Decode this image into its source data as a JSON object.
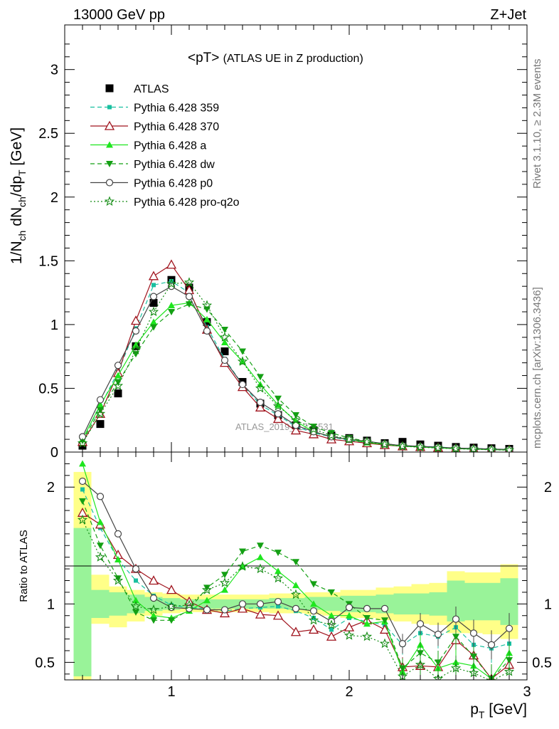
{
  "header": {
    "left": "13000 GeV pp",
    "right": "Z+Jet"
  },
  "title_main": "<pT>",
  "title_sub": "(ATLAS UE in Z production)",
  "side_labels": {
    "rivet": "Rivet 3.1.10, ≥ 2.3M events",
    "url": "mcplots.cern.ch [arXiv:1306.3436]"
  },
  "watermark": "ATLAS_2019_I1736531",
  "chart_data": [
    {
      "type": "scatter",
      "panel": "main",
      "ylabel": "1/N_ch dN_ch/dp_T [GeV]",
      "xlim": [
        0.4,
        3.0
      ],
      "ylim": [
        0,
        3.35
      ],
      "y_ticks": [
        0,
        0.5,
        1,
        1.5,
        2,
        2.5,
        3
      ],
      "y_tick_labels": [
        "0",
        "0.5",
        "1",
        "1.5",
        "2",
        "2.5",
        "3"
      ],
      "legend_position": "top-left",
      "x": [
        0.5,
        0.6,
        0.7,
        0.8,
        0.9,
        1.0,
        1.1,
        1.2,
        1.3,
        1.4,
        1.5,
        1.6,
        1.7,
        1.8,
        1.9,
        2.0,
        2.1,
        2.2,
        2.3,
        2.4,
        2.5,
        2.6,
        2.7,
        2.8,
        2.9
      ],
      "series": [
        {
          "name": "ATLAS",
          "color": "#000000",
          "marker": "square",
          "line": "none",
          "values": [
            0.05,
            0.22,
            0.46,
            0.83,
            1.17,
            1.35,
            1.29,
            1.02,
            0.79,
            0.55,
            0.38,
            0.29,
            0.21,
            0.17,
            0.13,
            0.11,
            0.09,
            0.07,
            0.08,
            0.06,
            0.05,
            0.04,
            0.035,
            0.03,
            0.025
          ]
        },
        {
          "name": "Pythia 6.428 359",
          "color": "#19c0a0",
          "marker": "square-small",
          "line": "dashed",
          "values": [
            0.1,
            0.36,
            0.63,
            0.97,
            1.31,
            1.34,
            1.25,
            0.98,
            0.73,
            0.53,
            0.37,
            0.29,
            0.2,
            0.15,
            0.12,
            0.09,
            0.075,
            0.06,
            0.05,
            0.045,
            0.04,
            0.03,
            0.028,
            0.025,
            0.02
          ]
        },
        {
          "name": "Pythia 6.428 370",
          "color": "#a0141e",
          "marker": "triangle-open",
          "line": "solid",
          "values": [
            0.08,
            0.3,
            0.62,
            1.03,
            1.38,
            1.47,
            1.27,
            0.96,
            0.7,
            0.51,
            0.35,
            0.26,
            0.17,
            0.14,
            0.1,
            0.085,
            0.07,
            0.055,
            0.045,
            0.04,
            0.035,
            0.028,
            0.025,
            0.02,
            0.018
          ]
        },
        {
          "name": "Pythia 6.428 a",
          "color": "#1ee61e",
          "marker": "triangle",
          "line": "solid",
          "values": [
            0.1,
            0.37,
            0.6,
            0.84,
            1.02,
            1.15,
            1.17,
            1.04,
            0.86,
            0.71,
            0.53,
            0.37,
            0.24,
            0.16,
            0.12,
            0.1,
            0.075,
            0.06,
            0.045,
            0.04,
            0.033,
            0.027,
            0.023,
            0.02,
            0.017
          ]
        },
        {
          "name": "Pythia 6.428 dw",
          "color": "#14a014",
          "marker": "triangle-down",
          "line": "dashed",
          "values": [
            0.09,
            0.33,
            0.55,
            0.77,
            0.98,
            1.1,
            1.16,
            1.12,
            0.96,
            0.79,
            0.59,
            0.42,
            0.29,
            0.2,
            0.15,
            0.11,
            0.085,
            0.065,
            0.05,
            0.042,
            0.035,
            0.028,
            0.024,
            0.02,
            0.017
          ]
        },
        {
          "name": "Pythia 6.428 p0",
          "color": "#444444",
          "marker": "circle-open",
          "line": "solid",
          "values": [
            0.12,
            0.41,
            0.68,
            0.95,
            1.22,
            1.3,
            1.22,
            0.95,
            0.72,
            0.53,
            0.39,
            0.3,
            0.21,
            0.16,
            0.12,
            0.1,
            0.085,
            0.065,
            0.05,
            0.045,
            0.038,
            0.032,
            0.028,
            0.024,
            0.02
          ]
        },
        {
          "name": "Pythia 6.428 pro-q2o",
          "color": "#148c14",
          "marker": "star",
          "line": "dotted",
          "values": [
            0.07,
            0.3,
            0.52,
            0.8,
            1.1,
            1.32,
            1.33,
            1.15,
            0.9,
            0.71,
            0.5,
            0.36,
            0.25,
            0.18,
            0.13,
            0.1,
            0.08,
            0.06,
            0.045,
            0.038,
            0.032,
            0.026,
            0.022,
            0.018,
            0.015
          ]
        }
      ]
    },
    {
      "type": "line",
      "panel": "ratio",
      "ylabel": "Ratio to ATLAS",
      "xlabel": "p_T [GeV]",
      "xlim": [
        0.4,
        3.0
      ],
      "ylim": [
        0.35,
        2.3
      ],
      "y_ticks": [
        0.5,
        1,
        2
      ],
      "y_tick_labels": [
        "0.5",
        "1",
        "2"
      ],
      "x_ticks": [
        1,
        2,
        3
      ],
      "x_tick_labels": [
        "1",
        "2",
        "3"
      ],
      "reference_line": 1,
      "x": [
        0.5,
        0.6,
        0.7,
        0.8,
        0.9,
        1.0,
        1.1,
        1.2,
        1.3,
        1.4,
        1.5,
        1.6,
        1.7,
        1.8,
        1.9,
        2.0,
        2.1,
        2.2,
        2.3,
        2.4,
        2.5,
        2.6,
        2.7,
        2.8,
        2.9
      ],
      "bands": {
        "edges": [
          0.45,
          0.55,
          0.65,
          0.75,
          0.85,
          0.95,
          1.05,
          1.15,
          1.25,
          1.35,
          1.45,
          1.55,
          1.65,
          1.75,
          1.85,
          1.95,
          2.05,
          2.15,
          2.25,
          2.35,
          2.45,
          2.55,
          2.65,
          2.75,
          2.85,
          2.95
        ],
        "green": [
          [
            0.38,
            1.65
          ],
          [
            0.88,
            1.12
          ],
          [
            0.9,
            1.1
          ],
          [
            0.92,
            1.08
          ],
          [
            0.94,
            1.06
          ],
          [
            0.95,
            1.05
          ],
          [
            0.96,
            1.04
          ],
          [
            0.96,
            1.04
          ],
          [
            0.96,
            1.04
          ],
          [
            0.96,
            1.04
          ],
          [
            0.96,
            1.04
          ],
          [
            0.96,
            1.05
          ],
          [
            0.95,
            1.05
          ],
          [
            0.95,
            1.06
          ],
          [
            0.94,
            1.06
          ],
          [
            0.93,
            1.07
          ],
          [
            0.93,
            1.07
          ],
          [
            0.92,
            1.08
          ],
          [
            0.91,
            1.09
          ],
          [
            0.91,
            1.09
          ],
          [
            0.9,
            1.1
          ],
          [
            0.85,
            1.2
          ],
          [
            0.86,
            1.18
          ],
          [
            0.86,
            1.18
          ],
          [
            0.82,
            1.22
          ]
        ],
        "yellow": [
          [
            0.35,
            2.13
          ],
          [
            0.83,
            1.25
          ],
          [
            0.8,
            1.15
          ],
          [
            0.85,
            1.12
          ],
          [
            0.9,
            1.1
          ],
          [
            0.92,
            1.09
          ],
          [
            0.93,
            1.08
          ],
          [
            0.93,
            1.08
          ],
          [
            0.93,
            1.08
          ],
          [
            0.93,
            1.08
          ],
          [
            0.93,
            1.08
          ],
          [
            0.92,
            1.09
          ],
          [
            0.92,
            1.09
          ],
          [
            0.91,
            1.1
          ],
          [
            0.9,
            1.1
          ],
          [
            0.88,
            1.12
          ],
          [
            0.88,
            1.12
          ],
          [
            0.86,
            1.14
          ],
          [
            0.85,
            1.15
          ],
          [
            0.83,
            1.17
          ],
          [
            0.82,
            1.18
          ],
          [
            0.75,
            1.28
          ],
          [
            0.75,
            1.27
          ],
          [
            0.74,
            1.27
          ],
          [
            0.7,
            1.34
          ]
        ]
      },
      "series": [
        {
          "name": "Pythia 6.428 359",
          "color": "#19c0a0",
          "marker": "square-small",
          "line": "dashed",
          "values": [
            1.98,
            1.65,
            1.38,
            1.2,
            1.07,
            0.99,
            0.97,
            0.96,
            0.94,
            0.96,
            0.97,
            0.98,
            0.94,
            0.88,
            0.78,
            0.88,
            0.85,
            0.82,
            0.65,
            0.75,
            0.72,
            0.8,
            0.65,
            0.62,
            0.66
          ]
        },
        {
          "name": "Pythia 6.428 370",
          "color": "#a0141e",
          "marker": "triangle-open",
          "line": "solid",
          "values": [
            1.78,
            1.68,
            1.42,
            1.3,
            1.2,
            1.12,
            1.02,
            0.95,
            0.92,
            0.96,
            0.91,
            0.9,
            0.76,
            0.78,
            0.72,
            0.8,
            0.86,
            0.78,
            0.46,
            0.47,
            0.46,
            0.69,
            0.56,
            0.36,
            0.48
          ]
        },
        {
          "name": "Pythia 6.428 a",
          "color": "#1ee61e",
          "marker": "triangle",
          "line": "solid",
          "values": [
            2.2,
            1.7,
            1.38,
            1.03,
            0.9,
            0.88,
            0.94,
            1.03,
            1.12,
            1.32,
            1.4,
            1.28,
            1.16,
            1.0,
            0.9,
            0.9,
            0.83,
            0.85,
            0.42,
            0.65,
            0.45,
            0.5,
            0.47,
            0.36,
            0.58
          ]
        },
        {
          "name": "Pythia 6.428 dw",
          "color": "#14a014",
          "marker": "triangle-down",
          "line": "dashed",
          "values": [
            1.88,
            1.5,
            1.22,
            0.93,
            0.86,
            0.86,
            0.95,
            1.14,
            1.25,
            1.45,
            1.5,
            1.44,
            1.36,
            1.17,
            1.1,
            1.0,
            0.88,
            0.86,
            0.45,
            0.58,
            0.5,
            0.72,
            0.55,
            0.36,
            0.52
          ]
        },
        {
          "name": "Pythia 6.428 p0",
          "color": "#444444",
          "marker": "circle-open",
          "line": "solid",
          "values": [
            2.05,
            1.92,
            1.6,
            1.3,
            1.05,
            0.97,
            0.96,
            0.95,
            0.95,
            1.0,
            1.0,
            1.02,
            0.96,
            0.94,
            0.85,
            0.97,
            0.96,
            0.96,
            0.66,
            0.83,
            0.74,
            0.87,
            0.75,
            0.65,
            0.79
          ]
        },
        {
          "name": "Pythia 6.428 pro-q2o",
          "color": "#148c14",
          "marker": "star",
          "line": "dotted",
          "values": [
            1.72,
            1.4,
            1.2,
            0.98,
            0.95,
            0.98,
            0.99,
            1.12,
            1.18,
            1.32,
            1.3,
            1.22,
            1.08,
            0.86,
            0.82,
            0.73,
            0.72,
            0.66,
            0.38,
            0.48,
            0.36,
            0.45,
            0.41,
            0.34,
            0.42
          ]
        }
      ]
    }
  ]
}
